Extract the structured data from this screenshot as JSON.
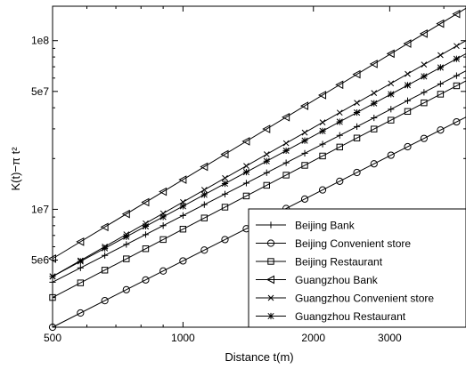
{
  "chart_data": {
    "type": "line",
    "title": "",
    "xlabel": "Distance t(m)",
    "ylabel": "K(t)−π t²",
    "xscale": "log",
    "yscale": "log",
    "xlim": [
      500,
      4500
    ],
    "ylim": [
      2000000,
      160000000
    ],
    "grid": false,
    "legend_position": "bottom-right",
    "x_ticks": [
      {
        "value": 500,
        "label": "500"
      },
      {
        "value": 1000,
        "label": "1000"
      },
      {
        "value": 2000,
        "label": "2000"
      },
      {
        "value": 3000,
        "label": "3000"
      }
    ],
    "y_ticks": [
      {
        "value": 5000000,
        "label": "5e6"
      },
      {
        "value": 10000000,
        "label": "1e7"
      },
      {
        "value": 50000000,
        "label": "5e7"
      },
      {
        "value": 100000000,
        "label": "1e8"
      }
    ],
    "x": [
      500,
      580,
      660,
      740,
      820,
      900,
      1000,
      1120,
      1250,
      1400,
      1560,
      1730,
      1910,
      2100,
      2300,
      2520,
      2760,
      3020,
      3300,
      3600,
      3930,
      4280
    ],
    "series": [
      {
        "name": "Beijing Bank",
        "marker": "+",
        "y_start": 3700000,
        "y_end": 62000000
      },
      {
        "name": "Beijing Convenient store",
        "marker": "o",
        "y_start": 2000000,
        "y_end": 33000000
      },
      {
        "name": "Beijing Restaurant",
        "marker": "s",
        "y_start": 3000000,
        "y_end": 54000000
      },
      {
        "name": "Guangzhou Bank",
        "marker": "<",
        "y_start": 5100000,
        "y_end": 144000000
      },
      {
        "name": "Guangzhou Convenient store",
        "marker": "x",
        "y_start": 4000000,
        "y_end": 93000000
      },
      {
        "name": "Guangzhou Restaurant",
        "marker": "*",
        "y_start": 4000000,
        "y_end": 78000000
      }
    ]
  }
}
